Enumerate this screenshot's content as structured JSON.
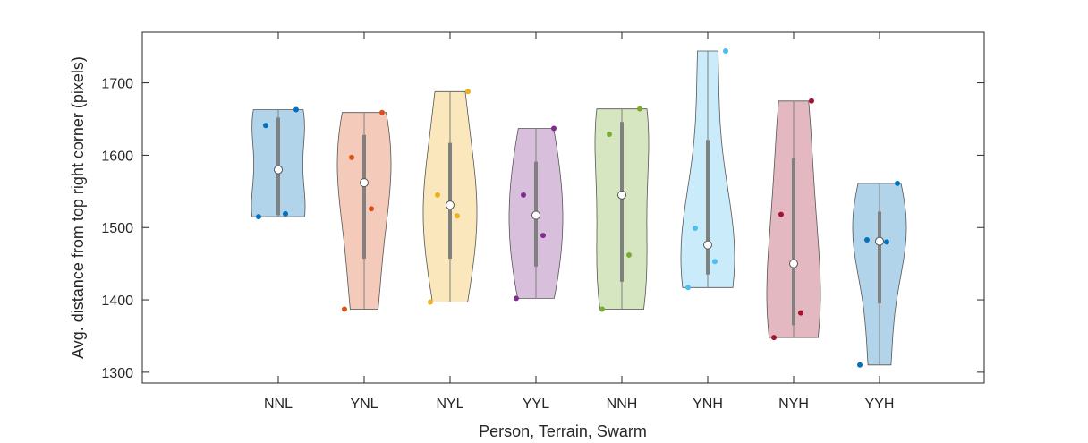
{
  "chart_data": {
    "type": "violin",
    "xlabel": "Person, Terrain, Swarm",
    "ylabel": "Avg. distance from top right corner (pixels)",
    "ylim": [
      1285,
      1770
    ],
    "yticks": [
      1300,
      1400,
      1500,
      1600,
      1700
    ],
    "categories": [
      "NNL",
      "YNL",
      "NYL",
      "YYL",
      "NNH",
      "YNH",
      "NYH",
      "YYH"
    ],
    "grid": false,
    "series": [
      {
        "category": "NNL",
        "color": "#0072BD",
        "points": [
          1515,
          1519,
          1641,
          1663
        ],
        "median": 1580,
        "q1": 1517,
        "q3": 1652,
        "min": 1515,
        "max": 1663
      },
      {
        "category": "YNL",
        "color": "#D95319",
        "points": [
          1387,
          1526,
          1597,
          1659
        ],
        "median": 1562,
        "q1": 1457,
        "q3": 1628,
        "min": 1387,
        "max": 1659
      },
      {
        "category": "NYL",
        "color": "#EDB120",
        "points": [
          1397,
          1516,
          1545,
          1688
        ],
        "median": 1531,
        "q1": 1457,
        "q3": 1617,
        "min": 1397,
        "max": 1688
      },
      {
        "category": "YYL",
        "color": "#7E2F8E",
        "points": [
          1402,
          1489,
          1545,
          1637
        ],
        "median": 1517,
        "q1": 1446,
        "q3": 1591,
        "min": 1402,
        "max": 1637
      },
      {
        "category": "NNH",
        "color": "#77AC30",
        "points": [
          1387,
          1462,
          1629,
          1664
        ],
        "median": 1545,
        "q1": 1425,
        "q3": 1646,
        "min": 1387,
        "max": 1664
      },
      {
        "category": "YNH",
        "color": "#4DBEEE",
        "points": [
          1417,
          1453,
          1499,
          1744
        ],
        "median": 1476,
        "q1": 1435,
        "q3": 1621,
        "min": 1417,
        "max": 1744
      },
      {
        "category": "NYH",
        "color": "#A2142F",
        "points": [
          1348,
          1382,
          1518,
          1675
        ],
        "median": 1450,
        "q1": 1365,
        "q3": 1596,
        "min": 1348,
        "max": 1675
      },
      {
        "category": "YYH",
        "color": "#0072BD",
        "points": [
          1310,
          1480,
          1483,
          1561
        ],
        "median": 1481,
        "q1": 1395,
        "q3": 1522,
        "min": 1310,
        "max": 1561
      }
    ]
  }
}
